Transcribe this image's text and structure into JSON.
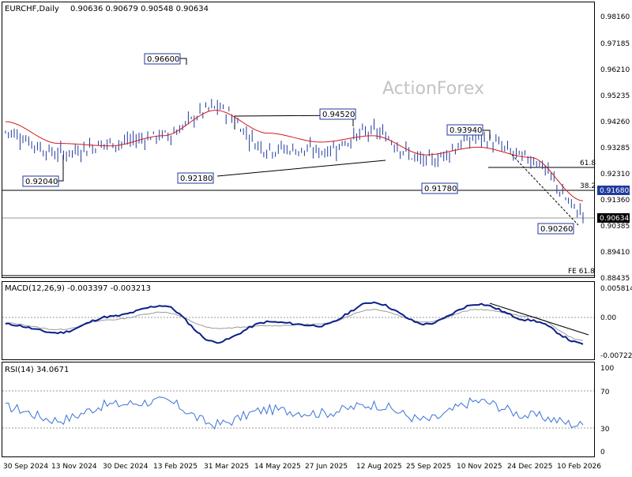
{
  "price_panel": {
    "symbol": "EURCHF,Daily",
    "ohlc": "0.90636 0.90679 0.90548 0.90634",
    "watermark": "ActionForex",
    "axis_ticks": [
      "0.98160",
      "0.97185",
      "0.96210",
      "0.95235",
      "0.94260",
      "0.93285",
      "0.92310",
      "0.91360",
      "0.90385",
      "0.89410",
      "0.88435"
    ],
    "current_price": "0.90634",
    "level_price": "0.91680",
    "labels": {
      "p96600": "0.96600",
      "p92040": "0.92040",
      "p92180": "0.92180",
      "p94520": "0.94520",
      "p91780": "0.91780",
      "p93940": "0.93940",
      "p90260": "0.90260"
    },
    "fib_618": "61.8",
    "fib_382": "38.2",
    "fe_618": "FE 61.8"
  },
  "macd_panel": {
    "label": "MACD(12,26,9) -0.003397 -0.003213",
    "axis_ticks": [
      "0.005814",
      "0.00",
      "-0.007222"
    ]
  },
  "rsi_panel": {
    "label": "RSI(14) 34.0671",
    "axis_ticks": [
      "100",
      "70",
      "30",
      "0"
    ]
  },
  "x_axis": {
    "ticks": [
      "30 Sep 2024",
      "13 Nov 2024",
      "30 Dec 2024",
      "13 Feb 2025",
      "31 Mar 2025",
      "14 May 2025",
      "27 Jun 2025",
      "12 Aug 2025",
      "25 Sep 2025",
      "10 Nov 2025",
      "24 Dec 2025",
      "10 Feb 2026"
    ]
  },
  "colors": {
    "price": "#1f3a9e",
    "ma": "#d21a1a",
    "macd": "#0b1f8a",
    "signal": "#9a9a9a",
    "rsi": "#3a72d6",
    "label_border": "#1f3a9e",
    "level_box": "#1f3a9e",
    "current_box": "#000000"
  },
  "chart_data": [
    {
      "type": "candlestick",
      "title": "EURCHF,Daily",
      "x": [
        "30 Sep 2024",
        "13 Nov 2024",
        "30 Dec 2024",
        "13 Feb 2025",
        "31 Mar 2025",
        "14 May 2025",
        "27 Jun 2025",
        "12 Aug 2025",
        "25 Sep 2025",
        "10 Nov 2025",
        "24 Dec 2025",
        "10 Feb 2026"
      ],
      "close": [
        0.941,
        0.9325,
        0.9365,
        0.9395,
        0.9505,
        0.9345,
        0.9335,
        0.941,
        0.9295,
        0.9385,
        0.9305,
        0.9095
      ],
      "series": [
        {
          "name": "MA",
          "values": [
            0.945,
            0.9365,
            0.9355,
            0.9395,
            0.9495,
            0.9405,
            0.937,
            0.9395,
            0.932,
            0.935,
            0.931,
            0.914
          ]
        }
      ],
      "ylim": [
        0.88435,
        0.9865
      ],
      "annotations": [
        "0.96600",
        "0.92040",
        "0.92180",
        "0.94520",
        "0.91780",
        "0.93940",
        "0.90260",
        "61.8",
        "38.2",
        "FE 61.8"
      ]
    },
    {
      "type": "line",
      "title": "MACD(12,26,9) -0.003397 -0.003213",
      "x": [
        "30 Sep 2024",
        "13 Nov 2024",
        "30 Dec 2024",
        "13 Feb 2025",
        "31 Mar 2025",
        "14 May 2025",
        "27 Jun 2025",
        "12 Aug 2025",
        "25 Sep 2025",
        "10 Nov 2025",
        "24 Dec 2025",
        "10 Feb 2026"
      ],
      "series": [
        {
          "values": [
            -0.0012,
            -0.0028,
            0.0002,
            0.0022,
            -0.0045,
            -0.0008,
            -0.0015,
            0.0028,
            -0.0012,
            0.0025,
            -0.0005,
            -0.0048
          ]
        },
        {
          "values": [
            -0.001,
            -0.0022,
            -0.0004,
            0.001,
            -0.002,
            -0.0015,
            -0.0012,
            0.0015,
            -0.0008,
            0.0015,
            0.0002,
            -0.0042
          ]
        }
      ],
      "ylim": [
        -0.007222,
        0.005814
      ]
    },
    {
      "type": "line",
      "title": "RSI(14) 34.0671",
      "x": [
        "30 Sep 2024",
        "13 Nov 2024",
        "30 Dec 2024",
        "13 Feb 2025",
        "31 Mar 2025",
        "14 May 2025",
        "27 Jun 2025",
        "12 Aug 2025",
        "25 Sep 2025",
        "10 Nov 2025",
        "24 Dec 2025",
        "10 Feb 2026"
      ],
      "values": [
        55,
        40,
        58,
        62,
        35,
        52,
        48,
        58,
        40,
        62,
        45,
        34.07
      ],
      "ylim": [
        0,
        100
      ]
    }
  ]
}
